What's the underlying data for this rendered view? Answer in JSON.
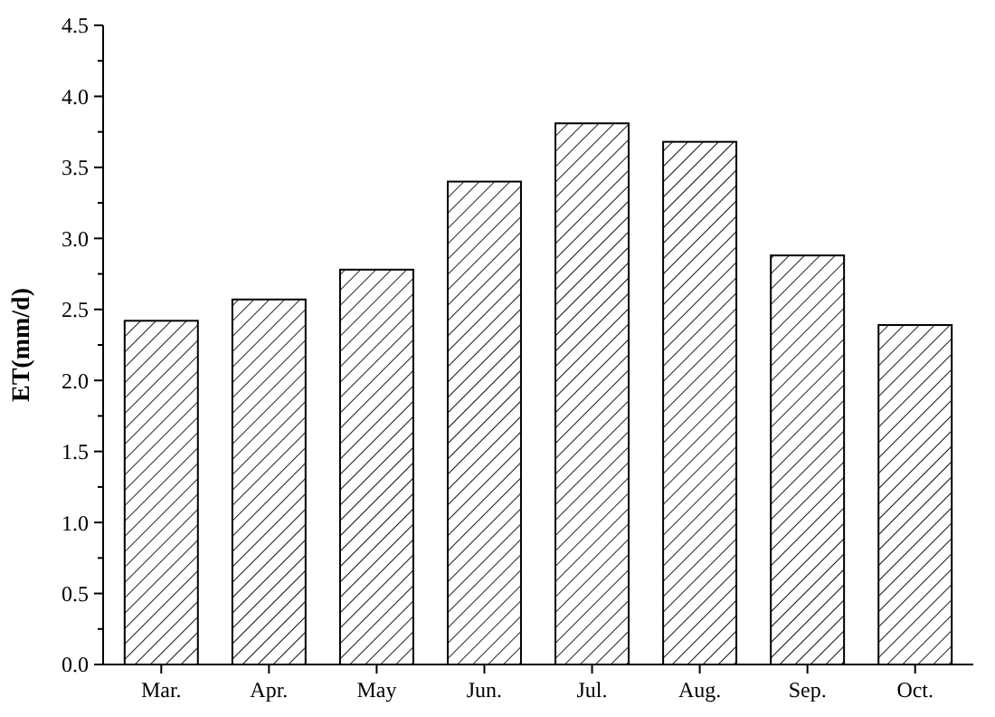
{
  "chart_data": {
    "type": "bar",
    "ylabel": "ET(mm/d)",
    "categories": [
      "Mar.",
      "Apr.",
      "May",
      "Jun.",
      "Jul.",
      "Aug.",
      "Sep.",
      "Oct."
    ],
    "values": [
      2.42,
      2.57,
      2.78,
      3.4,
      3.81,
      3.68,
      2.88,
      2.39
    ],
    "color": "#000000",
    "ylim": [
      0,
      4.5
    ],
    "yticks": [
      {
        "value": 0,
        "label": "0.0"
      },
      0.5,
      {
        "value": 1,
        "label": "1.0"
      },
      1.5,
      {
        "value": 2,
        "label": "2.0"
      },
      2.5,
      {
        "value": 3,
        "label": "3.0"
      },
      3.5,
      {
        "value": 4,
        "label": "4.0"
      },
      4.5
    ],
    "grid": false
  }
}
